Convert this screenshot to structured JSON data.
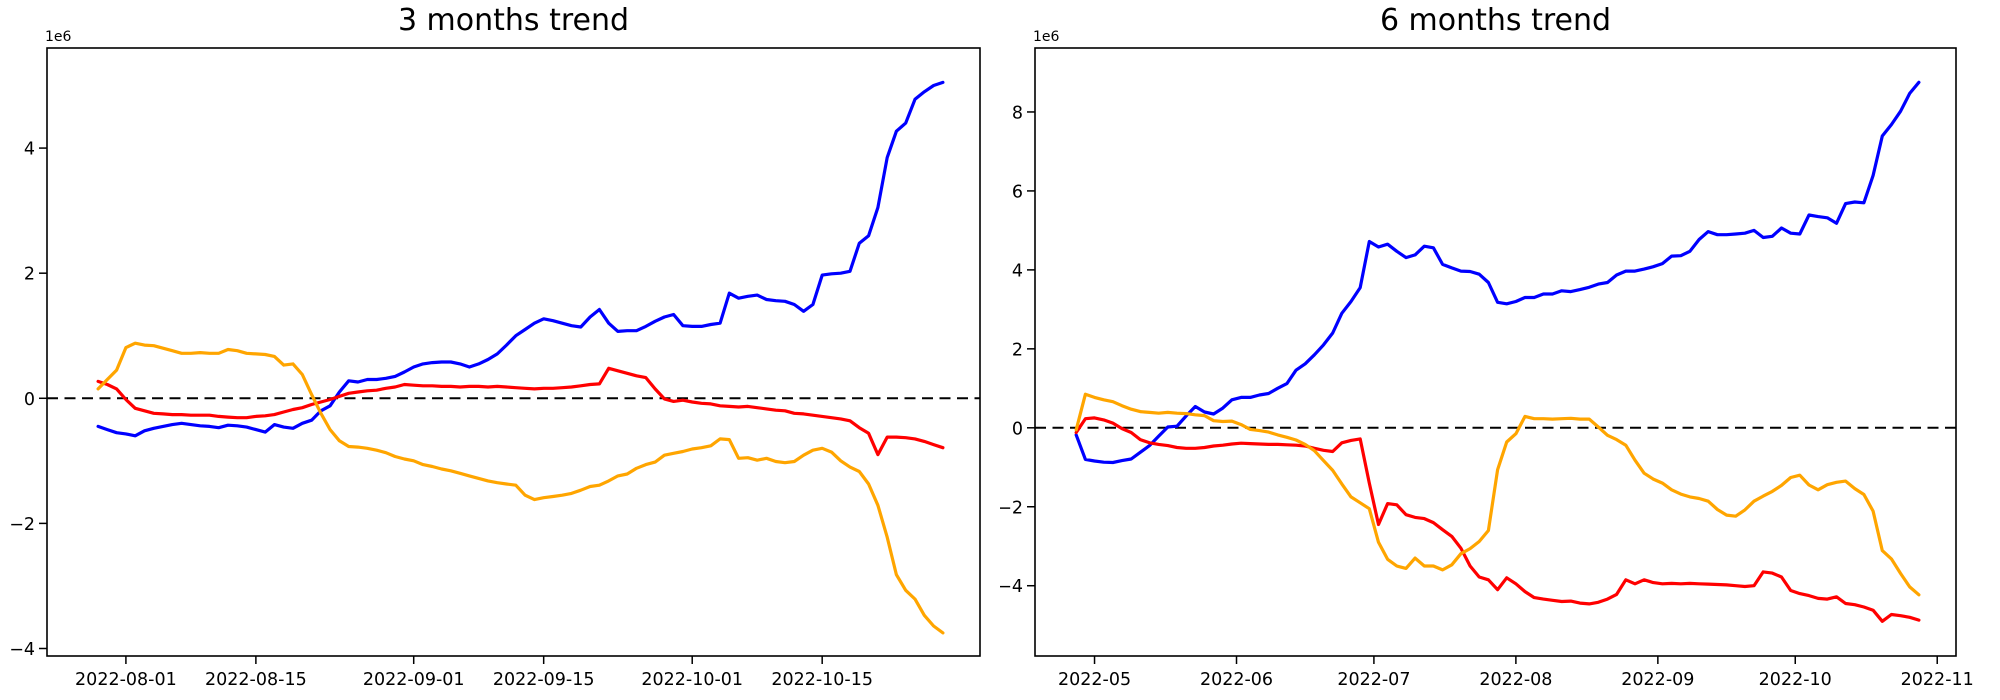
{
  "page": {
    "background_color": "#ffffff"
  },
  "charts": [
    {
      "title": "3 months trend",
      "offset_label": "1e6"
    },
    {
      "title": "6 months trend",
      "offset_label": "1e6"
    }
  ],
  "chart_data": [
    {
      "type": "line",
      "title": "3 months trend",
      "y_offset_label": "1e6",
      "y_unit_multiplier": 1000000,
      "x_start_date": "2022-07-29",
      "x_step_days": 1,
      "xlim_days": [
        -5.5,
        95
      ],
      "ylim": [
        -4.12,
        5.6
      ],
      "grid": false,
      "legend": null,
      "zero_line_dashed": true,
      "y_ticks": [
        {
          "value": 4,
          "label": "4"
        },
        {
          "value": 2,
          "label": "2"
        },
        {
          "value": 0,
          "label": "0"
        },
        {
          "value": -2,
          "label": "−2"
        },
        {
          "value": -4,
          "label": "−4"
        }
      ],
      "x_ticks": [
        {
          "day": 3,
          "label": "2022-08-01"
        },
        {
          "day": 17,
          "label": "2022-08-15"
        },
        {
          "day": 34,
          "label": "2022-09-01"
        },
        {
          "day": 48,
          "label": "2022-09-15"
        },
        {
          "day": 64,
          "label": "2022-10-01"
        },
        {
          "day": 78,
          "label": "2022-10-15"
        }
      ],
      "series": [
        {
          "name": "blue",
          "color": "#0000ff",
          "values": [
            -0.45,
            -0.5,
            -0.55,
            -0.57,
            -0.6,
            -0.52,
            -0.48,
            -0.45,
            -0.42,
            -0.4,
            -0.42,
            -0.44,
            -0.45,
            -0.47,
            -0.43,
            -0.44,
            -0.46,
            -0.5,
            -0.54,
            -0.42,
            -0.46,
            -0.48,
            -0.4,
            -0.35,
            -0.2,
            -0.12,
            0.1,
            0.28,
            0.26,
            0.3,
            0.3,
            0.32,
            0.35,
            0.42,
            0.5,
            0.55,
            0.57,
            0.58,
            0.58,
            0.55,
            0.5,
            0.55,
            0.62,
            0.71,
            0.85,
            1.0,
            1.1,
            1.2,
            1.27,
            1.24,
            1.2,
            1.16,
            1.14,
            1.3,
            1.42,
            1.2,
            1.07,
            1.08,
            1.08,
            1.15,
            1.23,
            1.3,
            1.34,
            1.16,
            1.15,
            1.15,
            1.18,
            1.2,
            1.68,
            1.6,
            1.63,
            1.65,
            1.58,
            1.56,
            1.55,
            1.5,
            1.39,
            1.5,
            1.97,
            1.99,
            2.0,
            2.03,
            2.48,
            2.6,
            3.05,
            3.85,
            4.27,
            4.4,
            4.78,
            4.9,
            5.0,
            5.05
          ]
        },
        {
          "name": "red",
          "color": "#ff0000",
          "values": [
            0.27,
            0.22,
            0.15,
            -0.02,
            -0.16,
            -0.2,
            -0.24,
            -0.25,
            -0.26,
            -0.26,
            -0.27,
            -0.27,
            -0.27,
            -0.29,
            -0.3,
            -0.31,
            -0.31,
            -0.29,
            -0.28,
            -0.26,
            -0.22,
            -0.18,
            -0.15,
            -0.1,
            -0.06,
            -0.02,
            0.03,
            0.08,
            0.1,
            0.12,
            0.13,
            0.16,
            0.18,
            0.22,
            0.21,
            0.2,
            0.2,
            0.19,
            0.19,
            0.18,
            0.19,
            0.19,
            0.18,
            0.19,
            0.18,
            0.17,
            0.16,
            0.15,
            0.16,
            0.16,
            0.17,
            0.18,
            0.2,
            0.22,
            0.23,
            0.48,
            0.44,
            0.4,
            0.36,
            0.33,
            0.15,
            -0.01,
            -0.05,
            -0.03,
            -0.06,
            -0.08,
            -0.09,
            -0.12,
            -0.13,
            -0.14,
            -0.13,
            -0.15,
            -0.17,
            -0.19,
            -0.2,
            -0.24,
            -0.25,
            -0.27,
            -0.29,
            -0.31,
            -0.33,
            -0.36,
            -0.47,
            -0.56,
            -0.9,
            -0.62,
            -0.62,
            -0.63,
            -0.65,
            -0.69,
            -0.74,
            -0.79
          ]
        },
        {
          "name": "orange",
          "color": "#ffa500",
          "values": [
            0.15,
            0.3,
            0.45,
            0.81,
            0.88,
            0.85,
            0.84,
            0.8,
            0.76,
            0.72,
            0.72,
            0.73,
            0.72,
            0.72,
            0.78,
            0.76,
            0.72,
            0.71,
            0.7,
            0.67,
            0.53,
            0.55,
            0.38,
            0.06,
            -0.24,
            -0.5,
            -0.68,
            -0.77,
            -0.78,
            -0.8,
            -0.83,
            -0.87,
            -0.93,
            -0.97,
            -1.0,
            -1.06,
            -1.09,
            -1.13,
            -1.16,
            -1.2,
            -1.24,
            -1.28,
            -1.32,
            -1.35,
            -1.37,
            -1.39,
            -1.55,
            -1.62,
            -1.59,
            -1.57,
            -1.55,
            -1.52,
            -1.47,
            -1.41,
            -1.39,
            -1.32,
            -1.24,
            -1.21,
            -1.12,
            -1.06,
            -1.02,
            -0.91,
            -0.88,
            -0.85,
            -0.81,
            -0.79,
            -0.76,
            -0.65,
            -0.66,
            -0.96,
            -0.95,
            -0.99,
            -0.96,
            -1.01,
            -1.03,
            -1.01,
            -0.91,
            -0.83,
            -0.8,
            -0.86,
            -1.0,
            -1.1,
            -1.17,
            -1.37,
            -1.71,
            -2.22,
            -2.82,
            -3.07,
            -3.21,
            -3.47,
            -3.64,
            -3.75
          ]
        }
      ]
    },
    {
      "type": "line",
      "title": "6 months trend",
      "y_offset_label": "1e6",
      "y_unit_multiplier": 1000000,
      "x_start_date": "2022-04-27",
      "x_step_days": 2,
      "xlim_days": [
        -9.0,
        192.1
      ],
      "ylim": [
        -5.78,
        9.62
      ],
      "grid": false,
      "legend": null,
      "zero_line_dashed": true,
      "y_ticks": [
        {
          "value": 8,
          "label": "8"
        },
        {
          "value": 6,
          "label": "6"
        },
        {
          "value": 4,
          "label": "4"
        },
        {
          "value": 2,
          "label": "2"
        },
        {
          "value": 0,
          "label": "0"
        },
        {
          "value": -2,
          "label": "−2"
        },
        {
          "value": -4,
          "label": "−4"
        }
      ],
      "x_ticks": [
        {
          "day": 4,
          "label": "2022-05"
        },
        {
          "day": 35,
          "label": "2022-06"
        },
        {
          "day": 65,
          "label": "2022-07"
        },
        {
          "day": 96,
          "label": "2022-08"
        },
        {
          "day": 127,
          "label": "2022-09"
        },
        {
          "day": 157,
          "label": "2022-10"
        },
        {
          "day": 188,
          "label": "2022-11"
        }
      ],
      "series": [
        {
          "name": "blue",
          "color": "#0000ff",
          "values": [
            -0.18,
            -0.8,
            -0.84,
            -0.87,
            -0.88,
            -0.83,
            -0.79,
            -0.62,
            -0.45,
            -0.21,
            0.02,
            0.04,
            0.3,
            0.54,
            0.4,
            0.35,
            0.5,
            0.71,
            0.77,
            0.77,
            0.83,
            0.87,
            1.0,
            1.12,
            1.46,
            1.62,
            1.85,
            2.1,
            2.4,
            2.9,
            3.2,
            3.55,
            4.72,
            4.58,
            4.65,
            4.47,
            4.31,
            4.38,
            4.6,
            4.56,
            4.14,
            4.05,
            3.97,
            3.96,
            3.89,
            3.68,
            3.18,
            3.14,
            3.2,
            3.3,
            3.3,
            3.39,
            3.39,
            3.47,
            3.45,
            3.5,
            3.56,
            3.64,
            3.68,
            3.87,
            3.97,
            3.97,
            4.02,
            4.08,
            4.16,
            4.35,
            4.36,
            4.47,
            4.77,
            4.97,
            4.89,
            4.89,
            4.91,
            4.93,
            5.0,
            4.82,
            4.85,
            5.06,
            4.93,
            4.91,
            5.39,
            5.35,
            5.32,
            5.18,
            5.68,
            5.72,
            5.7,
            6.39,
            7.39,
            7.68,
            8.02,
            8.47,
            8.75
          ]
        },
        {
          "name": "red",
          "color": "#ff0000",
          "values": [
            -0.12,
            0.23,
            0.25,
            0.2,
            0.12,
            -0.02,
            -0.12,
            -0.3,
            -0.38,
            -0.42,
            -0.45,
            -0.5,
            -0.52,
            -0.52,
            -0.5,
            -0.46,
            -0.44,
            -0.41,
            -0.39,
            -0.4,
            -0.41,
            -0.42,
            -0.42,
            -0.43,
            -0.44,
            -0.46,
            -0.52,
            -0.57,
            -0.6,
            -0.38,
            -0.32,
            -0.28,
            -1.4,
            -2.45,
            -1.92,
            -1.95,
            -2.2,
            -2.27,
            -2.3,
            -2.4,
            -2.58,
            -2.75,
            -3.05,
            -3.5,
            -3.78,
            -3.85,
            -4.1,
            -3.8,
            -3.95,
            -4.15,
            -4.3,
            -4.34,
            -4.37,
            -4.4,
            -4.39,
            -4.44,
            -4.46,
            -4.42,
            -4.34,
            -4.22,
            -3.85,
            -3.95,
            -3.85,
            -3.92,
            -3.95,
            -3.94,
            -3.95,
            -3.94,
            -3.95,
            -3.96,
            -3.97,
            -3.98,
            -4.0,
            -4.02,
            -4.0,
            -3.65,
            -3.68,
            -3.78,
            -4.12,
            -4.2,
            -4.25,
            -4.32,
            -4.34,
            -4.28,
            -4.45,
            -4.48,
            -4.54,
            -4.62,
            -4.9,
            -4.73,
            -4.76,
            -4.8,
            -4.87
          ]
        },
        {
          "name": "orange",
          "color": "#ffa500",
          "values": [
            -0.05,
            0.85,
            0.77,
            0.71,
            0.66,
            0.56,
            0.47,
            0.41,
            0.39,
            0.37,
            0.39,
            0.37,
            0.36,
            0.33,
            0.31,
            0.18,
            0.16,
            0.17,
            0.08,
            -0.04,
            -0.07,
            -0.11,
            -0.18,
            -0.24,
            -0.31,
            -0.42,
            -0.58,
            -0.83,
            -1.08,
            -1.42,
            -1.75,
            -1.9,
            -2.05,
            -2.9,
            -3.33,
            -3.5,
            -3.56,
            -3.3,
            -3.5,
            -3.5,
            -3.6,
            -3.47,
            -3.19,
            -3.06,
            -2.88,
            -2.6,
            -1.06,
            -0.36,
            -0.15,
            0.29,
            0.23,
            0.23,
            0.22,
            0.23,
            0.24,
            0.22,
            0.22,
            0.02,
            -0.19,
            -0.3,
            -0.44,
            -0.82,
            -1.15,
            -1.3,
            -1.4,
            -1.57,
            -1.68,
            -1.75,
            -1.79,
            -1.86,
            -2.07,
            -2.21,
            -2.24,
            -2.08,
            -1.86,
            -1.73,
            -1.61,
            -1.46,
            -1.26,
            -1.2,
            -1.45,
            -1.57,
            -1.44,
            -1.38,
            -1.35,
            -1.54,
            -1.69,
            -2.11,
            -3.11,
            -3.32,
            -3.69,
            -4.03,
            -4.23
          ]
        }
      ]
    }
  ]
}
